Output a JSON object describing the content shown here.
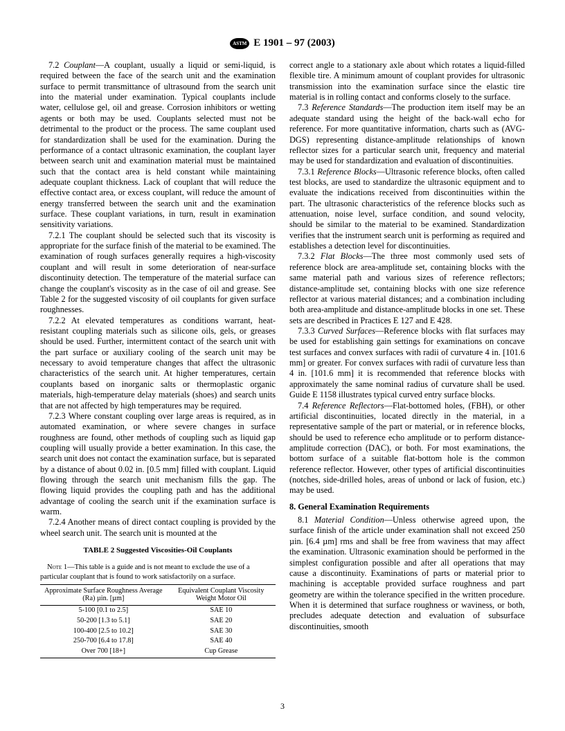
{
  "header": {
    "standard_id": "E 1901 – 97 (2003)",
    "logo_text": "ASTM"
  },
  "left_column": {
    "p72": "7.2 Couplant—A couplant, usually a liquid or semi-liquid, is required between the face of the search unit and the examination surface to permit transmittance of ultrasound from the search unit into the material under examination. Typical couplants include water, cellulose gel, oil and grease. Corrosion inhibitors or wetting agents or both may be used. Couplants selected must not be detrimental to the product or the process. The same couplant used for standardization shall be used for the examination. During the performance of a contact ultrasonic examination, the couplant layer between search unit and examination material must be maintained such that the contact area is held constant while maintaining adequate couplant thickness. Lack of couplant that will reduce the effective contact area, or excess couplant, will reduce the amount of energy transferred between the search unit and the examination surface. These couplant variations, in turn, result in examination sensitivity variations.",
    "p721": "7.2.1 The couplant should be selected such that its viscosity is appropriate for the surface finish of the material to be examined. The examination of rough surfaces generally requires a high-viscosity couplant and will result in some deterioration of near-surface discontinuity detection. The temperature of the material surface can change the couplant's viscosity as in the case of oil and grease. See Table 2 for the suggested viscosity of oil couplants for given surface roughnesses.",
    "p722": "7.2.2 At elevated temperatures as conditions warrant, heat-resistant coupling materials such as silicone oils, gels, or greases should be used. Further, intermittent contact of the search unit with the part surface or auxiliary cooling of the search unit may be necessary to avoid temperature changes that affect the ultrasonic characteristics of the search unit. At higher temperatures, certain couplants based on inorganic salts or thermoplastic organic materials, high-temperature delay materials (shoes) and search units that are not affected by high temperatures may be required.",
    "p723": "7.2.3 Where constant coupling over large areas is required, as in automated examination, or where severe changes in surface roughness are found, other methods of coupling such as liquid gap coupling will usually provide a better examination. In this case, the search unit does not contact the examination surface, but is separated by a distance of about 0.02 in. [0.5 mm] filled with couplant. Liquid flowing through the search unit mechanism fills the gap. The flowing liquid provides the coupling path and has the additional advantage of cooling the search unit if the examination surface is warm.",
    "p724": "7.2.4 Another means of direct contact coupling is provided by the wheel search unit. The search unit is mounted at the"
  },
  "table2": {
    "title": "TABLE 2  Suggested Viscosities-Oil Couplants",
    "note_label": "Note 1",
    "note": "—This table is a guide and is not meant to exclude the use of a particular couplant that is found to work satisfactorily on a surface.",
    "col1": "Approximate Surface Roughness Average (Ra) µin. [µm]",
    "col2": "Equivalent Couplant Viscosity Weight Motor Oil",
    "rows": [
      {
        "r": "5-100 [0.1 to 2.5]",
        "v": "SAE 10"
      },
      {
        "r": "50-200 [1.3 to 5.1]",
        "v": "SAE 20"
      },
      {
        "r": "100-400 [2.5 to 10.2]",
        "v": "SAE 30"
      },
      {
        "r": "250-700 [6.4 to 17.8]",
        "v": "SAE 40"
      },
      {
        "r": "Over 700 [18+]",
        "v": "Cup Grease"
      }
    ]
  },
  "right_column": {
    "p_cont": "correct angle to a stationary axle about which rotates a liquid-filled flexible tire. A minimum amount of couplant provides for ultrasonic transmission into the examination surface since the elastic tire material is in rolling contact and conforms closely to the surface.",
    "p73": "7.3 Reference Standards—The production item itself may be an adequate standard using the height of the back-wall echo for reference. For more quantitative information, charts such as (AVG-DGS) representing distance-amplitude relationships of known reflector sizes for a particular search unit, frequency and material may be used for standardization and evaluation of discontinuities.",
    "p731": "7.3.1 Reference Blocks—Ultrasonic reference blocks, often called test blocks, are used to standardize the ultrasonic equipment and to evaluate the indications received from discontinuities within the part. The ultrasonic characteristics of the reference blocks such as attenuation, noise level, surface condition, and sound velocity, should be similar to the material to be examined. Standardization verifies that the instrument search unit is performing as required and establishes a detection level for discontinuities.",
    "p732": "7.3.2 Flat Blocks—The three most commonly used sets of reference block are area-amplitude set, containing blocks with the same material path and various sizes of reference reflectors; distance-amplitude set, containing blocks with one size reference reflector at various material distances; and a combination including both area-amplitude and distance-amplitude blocks in one set. These sets are described in Practices E 127 and E 428.",
    "p733": "7.3.3 Curved Surfaces—Reference blocks with flat surfaces may be used for establishing gain settings for examinations on concave test surfaces and convex surfaces with radii of curvature 4 in. [101.6 mm] or greater. For convex surfaces with radii of curvature less than 4 in. [101.6 mm] it is recommended that reference blocks with approximately the same nominal radius of curvature shall be used. Guide E 1158 illustrates typical curved entry surface blocks.",
    "p74": "7.4 Reference Reflectors—Flat-bottomed holes, (FBH), or other artificial discontinuities, located directly in the material, in a representative sample of the part or material, or in reference blocks, should be used to reference echo amplitude or to perform distance-amplitude correction (DAC), or both. For most examinations, the bottom surface of a suitable flat-bottom hole is the common reference reflector. However, other types of artificial discontinuities (notches, side-drilled holes, areas of unbond or lack of fusion, etc.) may be used.",
    "s8_title": "8.  General Examination Requirements",
    "p81": "8.1 Material Condition—Unless otherwise agreed upon, the surface finish of the article under examination shall not exceed 250 µin. [6.4 µm] rms and shall be free from waviness that may affect the examination. Ultrasonic examination should be performed in the simplest configuration possible and after all operations that may cause a discontinuity. Examinations of parts or material prior to machining is acceptable provided surface roughness and part geometry are within the tolerance specified in the written procedure. When it is determined that surface roughness or waviness, or both, precludes adequate detection and evaluation of subsurface discontinuities, smooth"
  },
  "page_number": "3"
}
